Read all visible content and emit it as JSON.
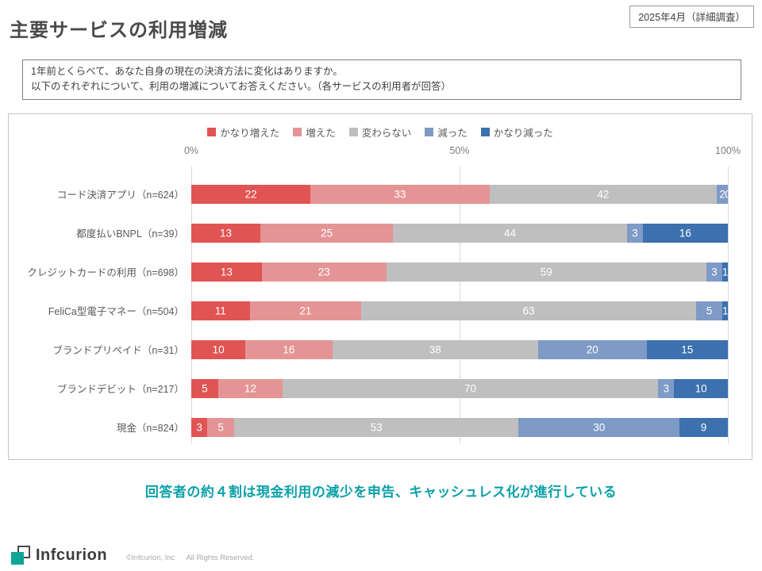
{
  "page": {
    "title": "主要サービスの利用増減",
    "date_badge": "2025年4月（詳細調査）",
    "question_line1": "1年前とくらべて、あなた自身の現在の決済方法に変化はありますか。",
    "question_line2": "以下のそれぞれについて、利用の増減についてお答えください。（各サービスの利用者が回答）",
    "summary": "回答者の約４割は現金利用の減少を申告、キャッシュレス化が進行している",
    "footer": {
      "logo_text": "Infcurion",
      "copyright": "©Infcurion, Inc",
      "rights": "All Rights Reserved."
    }
  },
  "chart_data": {
    "type": "bar",
    "stacked": true,
    "orientation": "horizontal",
    "legend_position": "top",
    "grid": "vertical",
    "xlim": [
      0,
      100
    ],
    "axis_ticks": [
      {
        "label": "0%",
        "position": 0
      },
      {
        "label": "50%",
        "position": 50
      },
      {
        "label": "100%",
        "position": 100
      }
    ],
    "series": [
      {
        "name": "かなり増えた",
        "color": "#e15454"
      },
      {
        "name": "増えた",
        "color": "#e59495"
      },
      {
        "name": "変わらない",
        "color": "#bfbfbf"
      },
      {
        "name": "減った",
        "color": "#7e9ac6"
      },
      {
        "name": "かなり減った",
        "color": "#3c70ae"
      }
    ],
    "rows": [
      {
        "label": "コード決済アプリ（n=624）",
        "values": [
          22,
          33,
          42,
          2,
          0
        ]
      },
      {
        "label": "都度払いBNPL（n=39）",
        "values": [
          13,
          25,
          44,
          3,
          16
        ]
      },
      {
        "label": "クレジットカードの利用（n=698）",
        "values": [
          13,
          23,
          59,
          3,
          1
        ]
      },
      {
        "label": "FeliCa型電子マネー（n=504）",
        "values": [
          11,
          21,
          63,
          5,
          1
        ]
      },
      {
        "label": "ブランドプリペイド（n=31）",
        "values": [
          10,
          16,
          38,
          20,
          15
        ]
      },
      {
        "label": "ブランドデビット（n=217）",
        "values": [
          5,
          12,
          70,
          3,
          10
        ]
      },
      {
        "label": "現金（n=824）",
        "values": [
          3,
          5,
          53,
          30,
          9
        ]
      }
    ]
  }
}
